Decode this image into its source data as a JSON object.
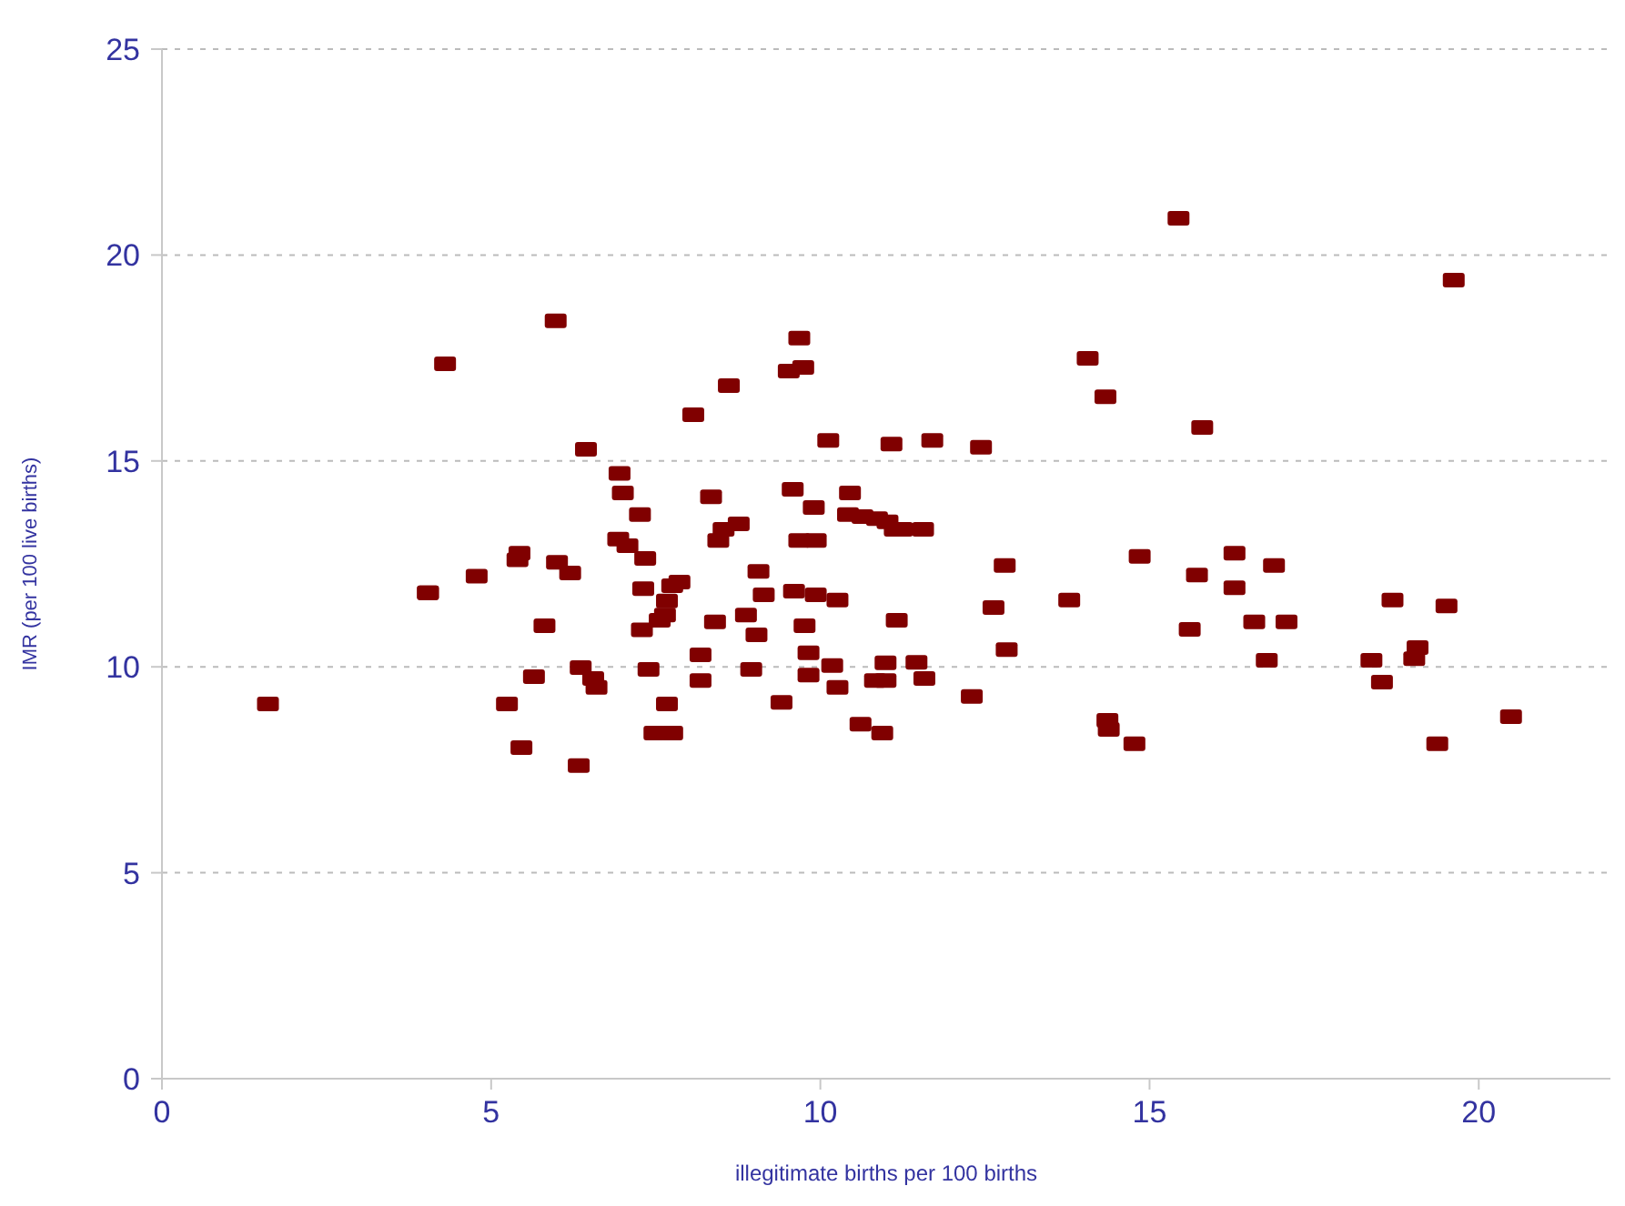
{
  "chart_data": {
    "type": "scatter",
    "xlabel": "illegitimate births per 100 births",
    "ylabel": "IMR (per 100 live births)",
    "xlim": [
      0,
      22
    ],
    "xticks": [
      0,
      5,
      10,
      15,
      20
    ],
    "ylim": [
      0,
      25
    ],
    "yticks": [
      0,
      5,
      10,
      15,
      20,
      25
    ],
    "grid": "y",
    "marker": "square",
    "series": [
      {
        "color": "#800000",
        "x": [
          1.61,
          4.04,
          4.3,
          4.04,
          4.78,
          5.98,
          5.24,
          5.43,
          5.4,
          5.46,
          5.65,
          5.81,
          6.0,
          6.2,
          6.44,
          6.33,
          6.36,
          6.55,
          6.6,
          6.95,
          7.0,
          6.93,
          7.07,
          7.26,
          7.34,
          7.31,
          7.29,
          7.39,
          7.48,
          7.56,
          7.67,
          7.64,
          7.75,
          7.75,
          7.67,
          7.86,
          8.07,
          8.18,
          8.18,
          8.34,
          8.4,
          8.45,
          8.53,
          8.61,
          8.76,
          8.87,
          8.95,
          9.03,
          9.06,
          9.14,
          9.41,
          9.52,
          9.58,
          9.6,
          9.68,
          9.68,
          9.74,
          9.76,
          9.82,
          9.9,
          9.93,
          9.93,
          9.82,
          10.12,
          10.18,
          10.26,
          10.26,
          10.45,
          10.42,
          10.61,
          10.64,
          10.86,
          10.83,
          10.94,
          10.99,
          10.99,
          11.08,
          11.02,
          11.13,
          11.16,
          11.24,
          11.46,
          11.56,
          11.58,
          11.7,
          12.3,
          12.44,
          12.63,
          12.8,
          12.83,
          13.78,
          14.06,
          14.36,
          14.33,
          14.38,
          14.77,
          14.85,
          15.44,
          15.61,
          15.72,
          15.8,
          16.29,
          16.29,
          16.59,
          16.78,
          16.89,
          17.08,
          18.37,
          18.53,
          18.69,
          19.02,
          19.07,
          19.37,
          19.51,
          19.62,
          20.49
        ],
        "values": [
          9.1,
          11.8,
          17.36,
          11.8,
          12.2,
          18.4,
          9.1,
          12.76,
          12.6,
          8.04,
          9.76,
          11.0,
          12.54,
          12.28,
          15.28,
          7.6,
          9.98,
          9.72,
          9.5,
          14.7,
          14.22,
          13.1,
          12.94,
          13.7,
          12.63,
          11.9,
          10.9,
          9.94,
          8.39,
          11.13,
          11.6,
          11.26,
          11.97,
          8.39,
          9.1,
          12.06,
          16.12,
          10.29,
          9.67,
          14.13,
          11.09,
          13.07,
          13.34,
          16.83,
          13.47,
          11.26,
          9.94,
          10.78,
          12.32,
          11.75,
          9.14,
          17.18,
          14.31,
          11.84,
          13.07,
          17.98,
          17.27,
          11.0,
          10.34,
          13.87,
          13.07,
          11.75,
          9.8,
          15.5,
          10.03,
          11.62,
          9.5,
          14.22,
          13.7,
          8.61,
          13.65,
          13.6,
          9.67,
          8.39,
          10.1,
          9.67,
          15.41,
          13.52,
          13.34,
          11.13,
          13.34,
          10.11,
          13.34,
          9.72,
          15.5,
          9.28,
          15.33,
          11.44,
          12.46,
          10.42,
          11.62,
          17.49,
          8.7,
          16.56,
          8.48,
          8.13,
          12.68,
          20.89,
          10.91,
          12.23,
          15.81,
          12.76,
          11.92,
          11.09,
          10.16,
          12.46,
          11.09,
          10.16,
          9.63,
          11.62,
          10.2,
          10.47,
          8.13,
          11.48,
          19.39,
          8.79
        ]
      }
    ]
  }
}
